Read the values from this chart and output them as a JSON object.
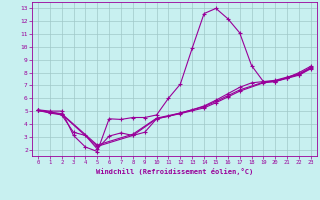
{
  "xlabel": "Windchill (Refroidissement éolien,°C)",
  "bg_color": "#c8f0f0",
  "grid_color": "#a0c8c8",
  "line_color": "#990099",
  "xlim": [
    -0.5,
    23.5
  ],
  "ylim": [
    1.5,
    13.5
  ],
  "xticks": [
    0,
    1,
    2,
    3,
    4,
    5,
    6,
    7,
    8,
    9,
    10,
    11,
    12,
    13,
    14,
    15,
    16,
    17,
    18,
    19,
    20,
    21,
    22,
    23
  ],
  "yticks": [
    2,
    3,
    4,
    5,
    6,
    7,
    8,
    9,
    10,
    11,
    12,
    13
  ],
  "lines": [
    {
      "x": [
        0,
        1,
        2,
        3,
        4,
        5,
        6,
        7,
        8,
        9,
        10,
        11,
        12,
        13,
        14,
        15,
        16,
        17,
        18,
        19,
        20,
        21,
        22,
        23
      ],
      "y": [
        5.1,
        5.0,
        5.0,
        3.1,
        2.2,
        1.85,
        4.4,
        4.35,
        4.5,
        4.5,
        4.7,
        6.0,
        7.1,
        9.9,
        12.6,
        13.0,
        12.2,
        11.1,
        8.55,
        7.3,
        7.3,
        7.6,
        8.0,
        8.5
      ]
    },
    {
      "x": [
        0,
        1,
        2,
        3,
        4,
        5,
        6,
        7,
        8,
        9,
        10,
        11,
        12,
        13,
        14,
        15,
        16,
        17,
        18,
        19,
        20,
        21,
        22,
        23
      ],
      "y": [
        5.05,
        4.85,
        4.7,
        3.35,
        3.1,
        2.05,
        3.05,
        3.3,
        3.1,
        3.35,
        4.4,
        4.6,
        4.85,
        5.1,
        5.4,
        5.85,
        6.35,
        6.85,
        7.2,
        7.3,
        7.4,
        7.65,
        7.9,
        8.4
      ]
    },
    {
      "x": [
        0,
        2,
        5,
        8,
        10,
        12,
        14,
        15,
        16,
        17,
        19,
        20,
        21,
        22,
        23
      ],
      "y": [
        5.05,
        4.8,
        2.35,
        3.2,
        4.45,
        4.85,
        5.35,
        5.75,
        6.2,
        6.65,
        7.25,
        7.35,
        7.6,
        7.85,
        8.35
      ]
    },
    {
      "x": [
        0,
        2,
        5,
        8,
        10,
        12,
        14,
        15,
        16,
        17,
        19,
        20,
        21,
        22,
        23
      ],
      "y": [
        5.05,
        4.75,
        2.25,
        3.1,
        4.4,
        4.8,
        5.25,
        5.65,
        6.1,
        6.55,
        7.2,
        7.3,
        7.55,
        7.8,
        8.3
      ]
    }
  ]
}
